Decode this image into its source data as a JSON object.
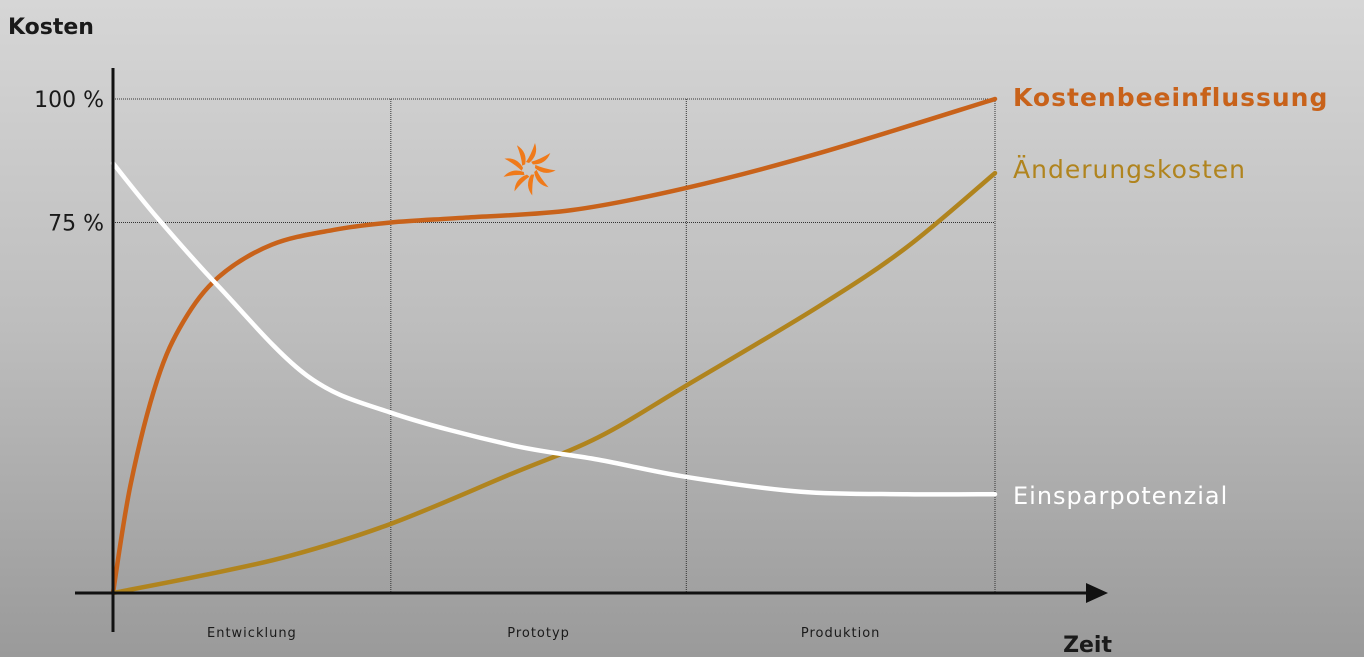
{
  "chart_data": {
    "type": "line",
    "ylabel": "Kosten",
    "xlabel": "Zeit",
    "y_ticks": [
      {
        "value": 100,
        "label": "100 %"
      },
      {
        "value": 75,
        "label": "75 %"
      }
    ],
    "ylim": [
      0,
      100
    ],
    "xlim": [
      0,
      100
    ],
    "phases": [
      "Entwicklung",
      "Prototyp",
      "Produktion"
    ],
    "phase_bounds": [
      0,
      31.5,
      65,
      100
    ],
    "series": [
      {
        "name": "Kostenbeeinflussung",
        "color": "#c8621a",
        "x": [
          0,
          2,
          5,
          8,
          12,
          18,
          25,
          31.5,
          40,
          52,
          65,
          80,
          100
        ],
        "y": [
          0,
          22,
          43,
          55,
          64,
          70.5,
          73.5,
          75,
          76,
          77.5,
          82,
          89,
          100
        ]
      },
      {
        "name": "Änderungskosten",
        "color": "#b0841e",
        "x": [
          0,
          10,
          20,
          31.5,
          45,
          55,
          65,
          80,
          90,
          100
        ],
        "y": [
          0,
          3.5,
          7.5,
          14,
          24,
          31.5,
          42,
          58,
          70,
          85
        ]
      },
      {
        "name": "Einsparpotenzial",
        "color": "#ffffff",
        "x": [
          0,
          5,
          12,
          22,
          31.5,
          45,
          55,
          65,
          78,
          90,
          100
        ],
        "y": [
          87,
          76,
          62,
          44,
          36.5,
          30,
          27,
          23.5,
          20.5,
          20,
          20
        ]
      }
    ],
    "annotation_icon": "orange-spiral-sun-icon",
    "grid": true
  }
}
